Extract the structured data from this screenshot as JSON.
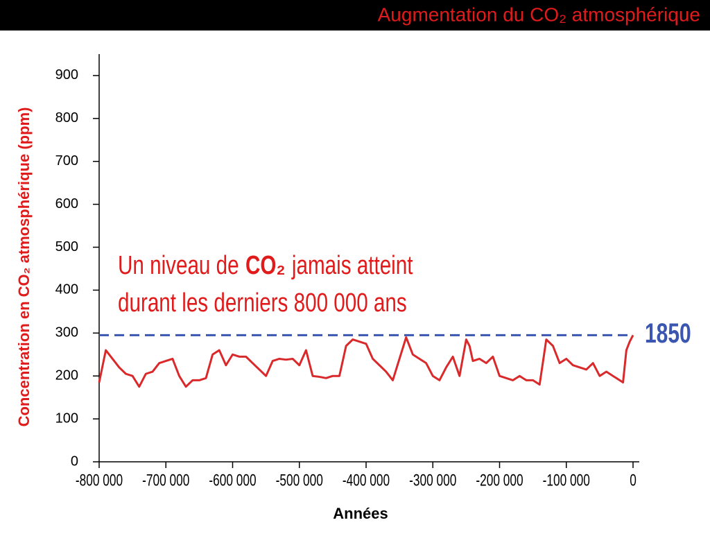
{
  "chart_data": {
    "type": "line",
    "title": "Augmentation du CO₂ atmosphérique",
    "ylabel": "Concentration en CO₂ atmosphérique (ppm)",
    "xlabel": "Années",
    "annotation": {
      "line1_before": "Un niveau de",
      "line1_bold": "CO₂",
      "line1_after": "jamais atteint",
      "line2": "durant les derniers 800 000 ans"
    },
    "reference_line": {
      "value": 295,
      "label": "1850",
      "color": "#3a56b0"
    },
    "color": "#d9292b",
    "x": [
      -800000,
      -790000,
      -780000,
      -770000,
      -760000,
      -750000,
      -740000,
      -730000,
      -720000,
      -710000,
      -700000,
      -690000,
      -680000,
      -670000,
      -660000,
      -650000,
      -640000,
      -630000,
      -620000,
      -610000,
      -600000,
      -590000,
      -580000,
      -570000,
      -560000,
      -550000,
      -540000,
      -530000,
      -520000,
      -510000,
      -500000,
      -490000,
      -480000,
      -470000,
      -460000,
      -450000,
      -440000,
      -430000,
      -420000,
      -410000,
      -400000,
      -390000,
      -380000,
      -370000,
      -360000,
      -350000,
      -340000,
      -330000,
      -320000,
      -310000,
      -300000,
      -290000,
      -280000,
      -270000,
      -260000,
      -250000,
      -245000,
      -240000,
      -230000,
      -220000,
      -210000,
      -200000,
      -190000,
      -180000,
      -170000,
      -160000,
      -150000,
      -140000,
      -130000,
      -120000,
      -110000,
      -100000,
      -90000,
      -80000,
      -70000,
      -60000,
      -50000,
      -40000,
      -30000,
      -20000,
      -15000,
      -10000,
      -5000,
      0
    ],
    "values": [
      185,
      260,
      240,
      220,
      205,
      200,
      175,
      205,
      210,
      230,
      235,
      240,
      200,
      175,
      190,
      190,
      195,
      250,
      260,
      225,
      250,
      245,
      245,
      230,
      215,
      200,
      235,
      240,
      238,
      240,
      225,
      260,
      200,
      198,
      195,
      200,
      200,
      270,
      285,
      280,
      275,
      240,
      225,
      210,
      190,
      240,
      290,
      250,
      240,
      230,
      200,
      190,
      220,
      245,
      200,
      285,
      270,
      235,
      240,
      230,
      245,
      200,
      195,
      190,
      200,
      190,
      190,
      180,
      285,
      270,
      230,
      240,
      225,
      220,
      215,
      230,
      200,
      210,
      200,
      190,
      185,
      260,
      280,
      295
    ],
    "xlim": [
      -800000,
      0
    ],
    "ylim": [
      0,
      950
    ],
    "xticks": [
      {
        "value": -800000,
        "label": "-800 000"
      },
      {
        "value": -700000,
        "label": "-700 000"
      },
      {
        "value": -600000,
        "label": "-600 000"
      },
      {
        "value": -500000,
        "label": "-500 000"
      },
      {
        "value": -400000,
        "label": "-400 000"
      },
      {
        "value": -300000,
        "label": "-300 000"
      },
      {
        "value": -200000,
        "label": "-200 000"
      },
      {
        "value": -100000,
        "label": "-100 000"
      },
      0
    ],
    "yticks": [
      0,
      100,
      200,
      300,
      400,
      500,
      600,
      700,
      800,
      900
    ]
  }
}
